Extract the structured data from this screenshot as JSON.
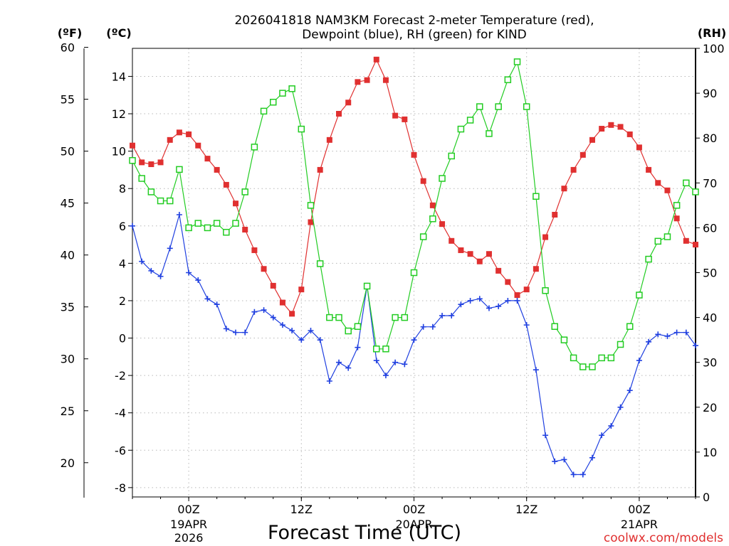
{
  "chart_data": {
    "type": "line",
    "title_line1": "2026041818 NAM3KM Forecast 2-meter Temperature (red),",
    "title_line2": "Dewpoint (blue), RH (green) for KIND",
    "xlabel": "Forecast Time (UTC)",
    "credit": "coolwx.com/models",
    "unit_labels": {
      "fahrenheit": "(ºF)",
      "celsius": "(ºC)",
      "rh": "(RH)"
    },
    "x_range_hours": [
      0,
      60
    ],
    "x_ticks": [
      {
        "hour": 6,
        "label": "00Z",
        "sub1": "19APR",
        "sub2": "2026"
      },
      {
        "hour": 18,
        "label": "12Z",
        "sub1": "",
        "sub2": ""
      },
      {
        "hour": 30,
        "label": "00Z",
        "sub1": "20APR",
        "sub2": ""
      },
      {
        "hour": 42,
        "label": "12Z",
        "sub1": "",
        "sub2": ""
      },
      {
        "hour": 54,
        "label": "00Z",
        "sub1": "21APR",
        "sub2": ""
      }
    ],
    "celsius_axis": {
      "range": [
        -8.5,
        15.5
      ],
      "ticks": [
        "-8",
        "-6",
        "-4",
        "-2",
        "0",
        "2",
        "4",
        "6",
        "8",
        "10",
        "12",
        "14"
      ]
    },
    "fahrenheit_axis": {
      "ticks": [
        "20",
        "25",
        "30",
        "35",
        "40",
        "45",
        "50",
        "55",
        "60"
      ]
    },
    "rh_axis": {
      "range": [
        0,
        100
      ],
      "ticks": [
        "0",
        "10",
        "20",
        "30",
        "40",
        "50",
        "60",
        "70",
        "80",
        "90",
        "100"
      ]
    },
    "series": [
      {
        "name": "2-meter Temperature",
        "axis": "celsius",
        "color": "#e03030",
        "marker": "filled-square",
        "points": [
          [
            0,
            10.3
          ],
          [
            1,
            9.4
          ],
          [
            2,
            9.3
          ],
          [
            3,
            9.4
          ],
          [
            4,
            10.6
          ],
          [
            5,
            11.0
          ],
          [
            6,
            10.9
          ],
          [
            7,
            10.3
          ],
          [
            8,
            9.6
          ],
          [
            9,
            9.0
          ],
          [
            10,
            8.2
          ],
          [
            11,
            7.2
          ],
          [
            12,
            5.8
          ],
          [
            13,
            4.7
          ],
          [
            14,
            3.7
          ],
          [
            15,
            2.8
          ],
          [
            16,
            1.9
          ],
          [
            17,
            1.3
          ],
          [
            18,
            2.6
          ],
          [
            19,
            6.2
          ],
          [
            20,
            9.0
          ],
          [
            21,
            10.6
          ],
          [
            22,
            12.0
          ],
          [
            23,
            12.6
          ],
          [
            24,
            13.7
          ],
          [
            25,
            13.8
          ],
          [
            26,
            14.9
          ],
          [
            27,
            13.8
          ],
          [
            28,
            11.9
          ],
          [
            29,
            11.7
          ],
          [
            30,
            9.8
          ],
          [
            31,
            8.4
          ],
          [
            32,
            7.1
          ],
          [
            33,
            6.1
          ],
          [
            34,
            5.2
          ],
          [
            35,
            4.7
          ],
          [
            36,
            4.5
          ],
          [
            37,
            4.1
          ],
          [
            38,
            4.5
          ],
          [
            39,
            3.6
          ],
          [
            40,
            3.0
          ],
          [
            41,
            2.3
          ],
          [
            42,
            2.6
          ],
          [
            43,
            3.7
          ],
          [
            44,
            5.4
          ],
          [
            45,
            6.6
          ],
          [
            46,
            8.0
          ],
          [
            47,
            9.0
          ],
          [
            48,
            9.8
          ],
          [
            49,
            10.6
          ],
          [
            50,
            11.2
          ],
          [
            51,
            11.4
          ],
          [
            52,
            11.3
          ],
          [
            53,
            10.9
          ],
          [
            54,
            10.2
          ],
          [
            55,
            9.0
          ],
          [
            56,
            8.3
          ],
          [
            57,
            7.9
          ],
          [
            58,
            6.4
          ],
          [
            59,
            5.2
          ],
          [
            60,
            5.0
          ]
        ]
      },
      {
        "name": "Dewpoint",
        "axis": "celsius",
        "color": "#2040e0",
        "marker": "plus",
        "points": [
          [
            0,
            6.0
          ],
          [
            1,
            4.1
          ],
          [
            2,
            3.6
          ],
          [
            3,
            3.3
          ],
          [
            4,
            4.8
          ],
          [
            5,
            6.6
          ],
          [
            6,
            3.5
          ],
          [
            7,
            3.1
          ],
          [
            8,
            2.1
          ],
          [
            9,
            1.8
          ],
          [
            10,
            0.5
          ],
          [
            11,
            0.3
          ],
          [
            12,
            0.3
          ],
          [
            13,
            1.4
          ],
          [
            14,
            1.5
          ],
          [
            15,
            1.1
          ],
          [
            16,
            0.7
          ],
          [
            17,
            0.4
          ],
          [
            18,
            -0.1
          ],
          [
            19,
            0.4
          ],
          [
            20,
            -0.1
          ],
          [
            21,
            -2.3
          ],
          [
            22,
            -1.3
          ],
          [
            23,
            -1.6
          ],
          [
            24,
            -0.5
          ],
          [
            25,
            2.8
          ],
          [
            26,
            -1.2
          ],
          [
            27,
            -2.0
          ],
          [
            28,
            -1.3
          ],
          [
            29,
            -1.4
          ],
          [
            30,
            -0.1
          ],
          [
            31,
            0.6
          ],
          [
            32,
            0.6
          ],
          [
            33,
            1.2
          ],
          [
            34,
            1.2
          ],
          [
            35,
            1.8
          ],
          [
            36,
            2.0
          ],
          [
            37,
            2.1
          ],
          [
            38,
            1.6
          ],
          [
            39,
            1.7
          ],
          [
            40,
            2.0
          ],
          [
            41,
            2.0
          ],
          [
            42,
            0.7
          ],
          [
            43,
            -1.7
          ],
          [
            44,
            -5.2
          ],
          [
            45,
            -6.6
          ],
          [
            46,
            -6.5
          ],
          [
            47,
            -7.3
          ],
          [
            48,
            -7.3
          ],
          [
            49,
            -6.4
          ],
          [
            50,
            -5.2
          ],
          [
            51,
            -4.7
          ],
          [
            52,
            -3.7
          ],
          [
            53,
            -2.8
          ],
          [
            54,
            -1.2
          ],
          [
            55,
            -0.2
          ],
          [
            56,
            0.2
          ],
          [
            57,
            0.1
          ],
          [
            58,
            0.3
          ],
          [
            59,
            0.3
          ],
          [
            60,
            -0.4
          ]
        ]
      },
      {
        "name": "RH",
        "axis": "rh",
        "color": "#22cc22",
        "marker": "open-square",
        "points": [
          [
            0,
            75
          ],
          [
            1,
            71
          ],
          [
            2,
            68
          ],
          [
            3,
            66
          ],
          [
            4,
            66
          ],
          [
            5,
            73
          ],
          [
            6,
            60
          ],
          [
            7,
            61
          ],
          [
            8,
            60
          ],
          [
            9,
            61
          ],
          [
            10,
            59
          ],
          [
            11,
            61
          ],
          [
            12,
            68
          ],
          [
            13,
            78
          ],
          [
            14,
            86
          ],
          [
            15,
            88
          ],
          [
            16,
            90
          ],
          [
            17,
            91
          ],
          [
            18,
            82
          ],
          [
            19,
            65
          ],
          [
            20,
            52
          ],
          [
            21,
            40
          ],
          [
            22,
            40
          ],
          [
            23,
            37
          ],
          [
            24,
            38
          ],
          [
            25,
            47
          ],
          [
            26,
            33
          ],
          [
            27,
            33
          ],
          [
            28,
            40
          ],
          [
            29,
            40
          ],
          [
            30,
            50
          ],
          [
            31,
            58
          ],
          [
            32,
            62
          ],
          [
            33,
            71
          ],
          [
            34,
            76
          ],
          [
            35,
            82
          ],
          [
            36,
            84
          ],
          [
            37,
            87
          ],
          [
            38,
            81
          ],
          [
            39,
            87
          ],
          [
            40,
            93
          ],
          [
            41,
            97
          ],
          [
            42,
            87
          ],
          [
            43,
            67
          ],
          [
            44,
            46
          ],
          [
            45,
            38
          ],
          [
            46,
            35
          ],
          [
            47,
            31
          ],
          [
            48,
            29
          ],
          [
            49,
            29
          ],
          [
            50,
            31
          ],
          [
            51,
            31
          ],
          [
            52,
            34
          ],
          [
            53,
            38
          ],
          [
            54,
            45
          ],
          [
            55,
            53
          ],
          [
            56,
            57
          ],
          [
            57,
            58
          ],
          [
            58,
            65
          ],
          [
            59,
            70
          ],
          [
            60,
            68
          ]
        ]
      }
    ]
  }
}
